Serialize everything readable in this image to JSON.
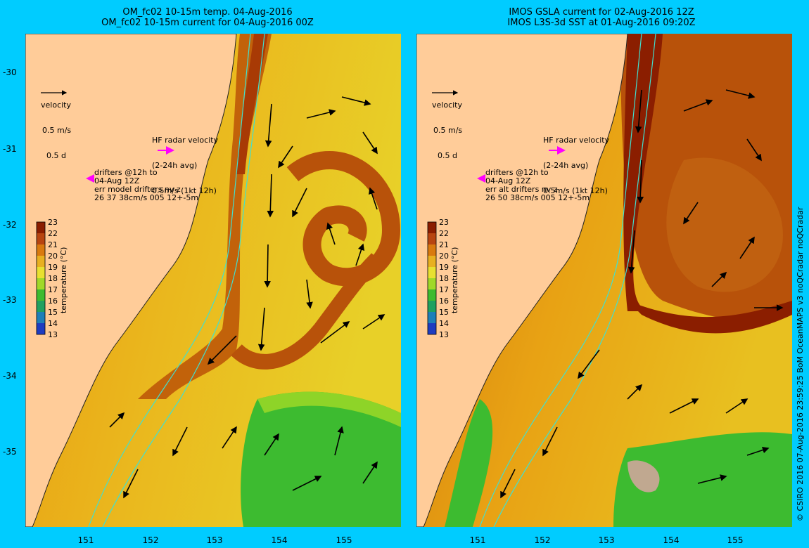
{
  "left_panel": {
    "title_line1": "OM_fc02 10-15m temp. 04-Aug-2016",
    "title_line2": "OM_fc02 10-15m current for 04-Aug-2016 00Z",
    "drifters_text": "drifters @12h to\n04-Aug 12Z\nerr model drifters nv z\n26 37 38cm/s 005 12+-5m"
  },
  "right_panel": {
    "title_line1": "IMOS GSLA current for 02-Aug-2016 12Z",
    "title_line2": "IMOS L3S-3d SST at 01-Aug-2016 09:20Z",
    "drifters_text": "drifters @12h to\n04-Aug 12Z\nerr alt drifters nv z\n26 50 38cm/s 005 12+-5m"
  },
  "velocity_legend": {
    "label": "velocity",
    "scale_line1": "0.5 m/s",
    "scale_line2": "0.5 d"
  },
  "hf_radar_legend": {
    "line1": "HF radar velocity",
    "line2": "(2-24h avg)",
    "line3": "0.5m/s (1kt 12h)"
  },
  "colorbar": {
    "title": "temperature (°C)",
    "ticks": [
      "23",
      "22",
      "21",
      "20",
      "19",
      "18",
      "17",
      "16",
      "15",
      "14",
      "13"
    ]
  },
  "y_axis_labels": [
    "-30",
    "-31",
    "-32",
    "-33",
    "-34",
    "-35"
  ],
  "x_axis_labels": [
    "151",
    "152",
    "153",
    "154",
    "155"
  ],
  "credit": "© CSIRO 2016   07-Aug-2016 23:59:25 BoM OceanMAPS v3 noQCradar noQCradar",
  "colors": {
    "background": "#00ccff",
    "land": "#ffcc99",
    "warm": "#a83a05",
    "mid": "#e89b10",
    "cool": "#e8e030",
    "cold": "#3dbb30",
    "contour": "#40e0d0",
    "hf_radar": "#ff00ff"
  }
}
